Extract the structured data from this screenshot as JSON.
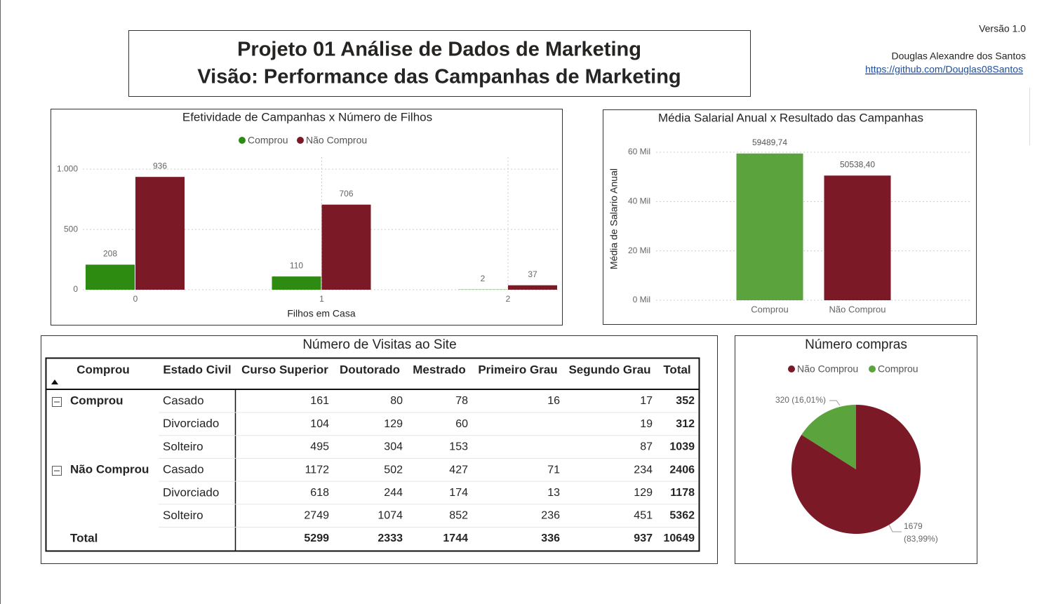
{
  "header": {
    "title_line1": "Projeto 01 Análise de Dados de Marketing",
    "title_line2": "Visão: Performance das Campanhas de Marketing",
    "version": "Versão 1.0",
    "author": "Douglas Alexandre dos Santos",
    "link": "https://github.com/Douglas08Santos"
  },
  "chart_data": [
    {
      "type": "bar",
      "title": "Efetividade de Campanhas x Número de Filhos",
      "x_label": "Filhos em Casa",
      "categories": [
        "0",
        "1",
        "2"
      ],
      "series": [
        {
          "name": "Comprou",
          "color": "#2e8b12",
          "values": [
            208,
            110,
            2
          ]
        },
        {
          "name": "Não Comprou",
          "color": "#7b1a26",
          "values": [
            936,
            706,
            37
          ]
        }
      ],
      "ylim": [
        0,
        1100
      ],
      "yticks": [
        0,
        500,
        {
          "value": 1000,
          "label": "1.000"
        }
      ],
      "grid": true,
      "legend": "top"
    },
    {
      "type": "bar",
      "title": "Média Salarial Anual x Resultado das Campanhas",
      "y_label": "Média de Salario Anual",
      "categories": [
        "Comprou",
        "Não Comprou"
      ],
      "values": [
        59489.74,
        50538.4
      ],
      "value_labels": [
        "59489,74",
        "50538,40"
      ],
      "colors": [
        "#5aa33d",
        "#7b1a26"
      ],
      "ylim": [
        0,
        60000
      ],
      "yticks": [
        {
          "value": 0,
          "label": "0 Mil"
        },
        {
          "value": 20000,
          "label": "20 Mil"
        },
        {
          "value": 40000,
          "label": "40 Mil"
        },
        {
          "value": 60000,
          "label": "60 Mil"
        }
      ],
      "grid": true
    },
    {
      "type": "pie",
      "title": "Número compras",
      "categories": [
        "Não Comprou",
        "Comprou"
      ],
      "values": [
        1679,
        320
      ],
      "value_labels": [
        "1679 (83,99%)",
        "320 (16,01%)"
      ],
      "colors": [
        "#7b1a26",
        "#5aa33d"
      ],
      "legend": "top"
    }
  ],
  "table": {
    "title": "Número de Visitas ao Site",
    "columns": [
      "Comprou",
      "Estado Civil",
      "Curso Superior",
      "Doutorado",
      "Mestrado",
      "Primeiro Grau",
      "Segundo Grau",
      "Total"
    ],
    "groups": [
      {
        "name": "Comprou",
        "rows": [
          {
            "label": "Casado",
            "values": [
              161,
              80,
              78,
              16,
              17,
              352
            ]
          },
          {
            "label": "Divorciado",
            "values": [
              104,
              129,
              60,
              null,
              19,
              312
            ]
          },
          {
            "label": "Solteiro",
            "values": [
              495,
              304,
              153,
              null,
              87,
              1039
            ]
          }
        ]
      },
      {
        "name": "Não Comprou",
        "rows": [
          {
            "label": "Casado",
            "values": [
              1172,
              502,
              427,
              71,
              234,
              2406
            ]
          },
          {
            "label": "Divorciado",
            "values": [
              618,
              244,
              174,
              13,
              129,
              1178
            ]
          },
          {
            "label": "Solteiro",
            "values": [
              2749,
              1074,
              852,
              236,
              451,
              5362
            ]
          }
        ]
      }
    ],
    "total": {
      "label": "Total",
      "values": [
        5299,
        2333,
        1744,
        336,
        937,
        10649
      ]
    }
  }
}
